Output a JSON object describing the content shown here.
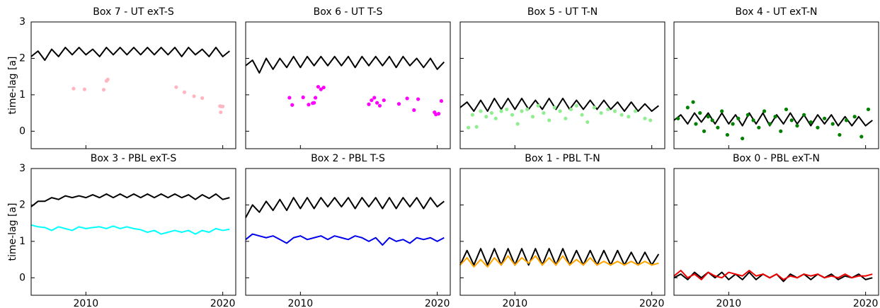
{
  "chart_data": [
    {
      "type": "line",
      "title": "Box 7 - UT exT-S",
      "ylabel": "time-lag [a]",
      "xlim": [
        2006.0,
        2020.95
      ],
      "xticks": [
        2010,
        2020
      ],
      "ylim": [
        -0.48,
        3
      ],
      "yticks": [
        0,
        1,
        2,
        3
      ],
      "x": [
        2006,
        2006.5,
        2007,
        2007.5,
        2008,
        2008.5,
        2009,
        2009.5,
        2010,
        2010.5,
        2011,
        2011.5,
        2012,
        2012.5,
        2013,
        2013.5,
        2014,
        2014.5,
        2015,
        2015.5,
        2016,
        2016.5,
        2017,
        2017.5,
        2018,
        2018.5,
        2019,
        2019.5,
        2020,
        2020.5
      ],
      "series": [
        {
          "kind": "line",
          "color": "#000000",
          "values": [
            2.05,
            2.2,
            1.95,
            2.25,
            2.05,
            2.3,
            2.1,
            2.3,
            2.1,
            2.25,
            2.05,
            2.3,
            2.1,
            2.3,
            2.1,
            2.3,
            2.1,
            2.3,
            2.1,
            2.3,
            2.1,
            2.3,
            2.05,
            2.3,
            2.1,
            2.25,
            2.05,
            2.3,
            2.05,
            2.2
          ]
        },
        {
          "kind": "scatter",
          "color": "#ffb6c1",
          "x": [
            2009.1,
            2009.9,
            2011.3,
            2011.5,
            2011.6,
            2016.6,
            2017.2,
            2017.9,
            2018.5,
            2019.8,
            2019.9,
            2020.0,
            2019.85
          ],
          "values": [
            1.17,
            1.15,
            1.14,
            1.38,
            1.42,
            1.21,
            1.07,
            0.96,
            0.91,
            0.69,
            0.68,
            0.68,
            0.52
          ]
        }
      ]
    },
    {
      "type": "line",
      "title": "Box 6 - UT T-S",
      "xlim": [
        2006.0,
        2020.95
      ],
      "xticks": [
        2010,
        2020
      ],
      "ylim": [
        -0.48,
        3
      ],
      "yticks": [
        0,
        1,
        2,
        3
      ],
      "x": [
        2006,
        2006.5,
        2007,
        2007.5,
        2008,
        2008.5,
        2009,
        2009.5,
        2010,
        2010.5,
        2011,
        2011.5,
        2012,
        2012.5,
        2013,
        2013.5,
        2014,
        2014.5,
        2015,
        2015.5,
        2016,
        2016.5,
        2017,
        2017.5,
        2018,
        2018.5,
        2019,
        2019.5,
        2020,
        2020.5
      ],
      "series": [
        {
          "kind": "line",
          "color": "#000000",
          "values": [
            1.8,
            1.95,
            1.6,
            2.0,
            1.7,
            2.0,
            1.75,
            2.05,
            1.75,
            2.05,
            1.8,
            2.05,
            1.8,
            2.05,
            1.8,
            2.05,
            1.75,
            2.05,
            1.8,
            2.05,
            1.8,
            2.05,
            1.75,
            2.05,
            1.8,
            2.0,
            1.75,
            2.0,
            1.7,
            1.9
          ]
        },
        {
          "kind": "scatter",
          "color": "#ff00ff",
          "x": [
            2009.2,
            2009.4,
            2010.2,
            2010.6,
            2010.9,
            2011.0,
            2011.1,
            2011.3,
            2011.5,
            2011.7,
            2015.0,
            2015.2,
            2015.4,
            2015.6,
            2015.8,
            2016.1,
            2017.2,
            2017.8,
            2018.3,
            2018.6,
            2019.8,
            2019.9,
            2020.1,
            2020.3
          ],
          "values": [
            0.92,
            0.72,
            0.93,
            0.73,
            0.77,
            0.78,
            0.92,
            1.22,
            1.15,
            1.2,
            0.74,
            0.85,
            0.92,
            0.78,
            0.7,
            0.85,
            0.75,
            0.9,
            0.58,
            0.88,
            0.52,
            0.46,
            0.48,
            0.83
          ]
        }
      ]
    },
    {
      "type": "line",
      "title": "Box 5 - UT T-N",
      "xlim": [
        2006.0,
        2020.95
      ],
      "xticks": [
        2010,
        2020
      ],
      "ylim": [
        -0.48,
        3
      ],
      "yticks": [
        0,
        1,
        2,
        3
      ],
      "x": [
        2006,
        2006.5,
        2007,
        2007.5,
        2008,
        2008.5,
        2009,
        2009.5,
        2010,
        2010.5,
        2011,
        2011.5,
        2012,
        2012.5,
        2013,
        2013.5,
        2014,
        2014.5,
        2015,
        2015.5,
        2016,
        2016.5,
        2017,
        2017.5,
        2018,
        2018.5,
        2019,
        2019.5,
        2020,
        2020.5
      ],
      "series": [
        {
          "kind": "line",
          "color": "#000000",
          "values": [
            0.65,
            0.8,
            0.55,
            0.85,
            0.55,
            0.9,
            0.6,
            0.9,
            0.6,
            0.9,
            0.6,
            0.85,
            0.6,
            0.9,
            0.6,
            0.9,
            0.6,
            0.85,
            0.6,
            0.85,
            0.6,
            0.85,
            0.6,
            0.8,
            0.55,
            0.8,
            0.55,
            0.75,
            0.55,
            0.7
          ]
        },
        {
          "kind": "scatter",
          "color": "#90ee90",
          "x": [
            2006.6,
            2006.9,
            2007.2,
            2007.5,
            2007.9,
            2008.3,
            2008.6,
            2009.0,
            2009.4,
            2009.8,
            2010.2,
            2010.5,
            2010.9,
            2011.3,
            2011.7,
            2012.1,
            2012.5,
            2012.9,
            2013.3,
            2013.7,
            2014.1,
            2014.5,
            2014.9,
            2015.3,
            2015.8,
            2016.3,
            2016.8,
            2017.3,
            2017.8,
            2018.3,
            2018.8,
            2019.5,
            2019.9
          ],
          "values": [
            0.1,
            0.45,
            0.12,
            0.55,
            0.4,
            0.5,
            0.35,
            0.55,
            0.6,
            0.45,
            0.2,
            0.55,
            0.6,
            0.4,
            0.7,
            0.5,
            0.3,
            0.65,
            0.55,
            0.35,
            0.6,
            0.7,
            0.45,
            0.25,
            0.65,
            0.5,
            0.6,
            0.55,
            0.45,
            0.4,
            0.55,
            0.35,
            0.3
          ]
        }
      ]
    },
    {
      "type": "line",
      "title": "Box 4 - UT exT-N",
      "xlim": [
        2006.0,
        2020.95
      ],
      "xticks": [
        2010,
        2020
      ],
      "ylim": [
        -0.48,
        3
      ],
      "yticks": [
        0,
        1,
        2,
        3
      ],
      "x": [
        2006,
        2006.5,
        2007,
        2007.5,
        2008,
        2008.5,
        2009,
        2009.5,
        2010,
        2010.5,
        2011,
        2011.5,
        2012,
        2012.5,
        2013,
        2013.5,
        2014,
        2014.5,
        2015,
        2015.5,
        2016,
        2016.5,
        2017,
        2017.5,
        2018,
        2018.5,
        2019,
        2019.5,
        2020,
        2020.5
      ],
      "series": [
        {
          "kind": "line",
          "color": "#000000",
          "values": [
            0.3,
            0.45,
            0.2,
            0.5,
            0.25,
            0.5,
            0.2,
            0.5,
            0.2,
            0.45,
            0.15,
            0.5,
            0.2,
            0.5,
            0.15,
            0.45,
            0.2,
            0.5,
            0.2,
            0.45,
            0.15,
            0.45,
            0.2,
            0.45,
            0.15,
            0.4,
            0.15,
            0.4,
            0.15,
            0.3
          ]
        },
        {
          "kind": "scatter",
          "color": "#008000",
          "x": [
            2006.3,
            2007.0,
            2007.4,
            2007.6,
            2007.9,
            2008.2,
            2008.5,
            2008.8,
            2009.2,
            2009.5,
            2009.9,
            2010.3,
            2010.7,
            2011.0,
            2011.4,
            2011.8,
            2012.2,
            2012.6,
            2013.0,
            2013.4,
            2013.8,
            2014.2,
            2014.6,
            2015.0,
            2015.5,
            2016.0,
            2016.5,
            2017.0,
            2017.6,
            2018.1,
            2018.6,
            2019.2,
            2019.7,
            2020.2
          ],
          "values": [
            0.35,
            0.65,
            0.8,
            0.2,
            0.5,
            0.0,
            0.4,
            0.3,
            0.1,
            0.55,
            -0.1,
            0.2,
            0.35,
            -0.2,
            0.45,
            0.3,
            0.1,
            0.55,
            0.2,
            0.4,
            0.0,
            0.6,
            0.3,
            0.15,
            0.45,
            0.25,
            0.1,
            0.35,
            0.2,
            -0.1,
            0.3,
            0.4,
            -0.15,
            0.6
          ]
        }
      ]
    },
    {
      "type": "line",
      "title": "Box 3 - PBL exT-S",
      "ylabel": "time-lag [a]",
      "xlim": [
        2006.0,
        2020.95
      ],
      "xticks": [
        2010,
        2020
      ],
      "ylim": [
        -0.48,
        3
      ],
      "yticks": [
        0,
        1,
        2,
        3
      ],
      "x": [
        2006,
        2006.5,
        2007,
        2007.5,
        2008,
        2008.5,
        2009,
        2009.5,
        2010,
        2010.5,
        2011,
        2011.5,
        2012,
        2012.5,
        2013,
        2013.5,
        2014,
        2014.5,
        2015,
        2015.5,
        2016,
        2016.5,
        2017,
        2017.5,
        2018,
        2018.5,
        2019,
        2019.5,
        2020,
        2020.5
      ],
      "series": [
        {
          "kind": "line",
          "color": "#000000",
          "values": [
            1.95,
            2.1,
            2.1,
            2.2,
            2.15,
            2.25,
            2.2,
            2.25,
            2.2,
            2.28,
            2.2,
            2.3,
            2.2,
            2.3,
            2.2,
            2.3,
            2.2,
            2.3,
            2.2,
            2.3,
            2.2,
            2.3,
            2.2,
            2.28,
            2.15,
            2.28,
            2.18,
            2.3,
            2.15,
            2.2
          ]
        },
        {
          "kind": "line",
          "color": "#00ffff",
          "values": [
            1.45,
            1.4,
            1.38,
            1.3,
            1.4,
            1.35,
            1.3,
            1.4,
            1.35,
            1.38,
            1.4,
            1.35,
            1.42,
            1.35,
            1.4,
            1.35,
            1.32,
            1.25,
            1.3,
            1.2,
            1.25,
            1.3,
            1.25,
            1.3,
            1.2,
            1.3,
            1.25,
            1.35,
            1.3,
            1.33
          ]
        }
      ]
    },
    {
      "type": "line",
      "title": "Box 2 - PBL T-S",
      "xlim": [
        2006.0,
        2020.95
      ],
      "xticks": [
        2010,
        2020
      ],
      "ylim": [
        -0.48,
        3
      ],
      "yticks": [
        0,
        1,
        2,
        3
      ],
      "x": [
        2006,
        2006.5,
        2007,
        2007.5,
        2008,
        2008.5,
        2009,
        2009.5,
        2010,
        2010.5,
        2011,
        2011.5,
        2012,
        2012.5,
        2013,
        2013.5,
        2014,
        2014.5,
        2015,
        2015.5,
        2016,
        2016.5,
        2017,
        2017.5,
        2018,
        2018.5,
        2019,
        2019.5,
        2020,
        2020.5
      ],
      "series": [
        {
          "kind": "line",
          "color": "#000000",
          "values": [
            1.65,
            2.0,
            1.8,
            2.1,
            1.85,
            2.15,
            1.85,
            2.2,
            1.9,
            2.2,
            1.9,
            2.2,
            1.95,
            2.2,
            1.95,
            2.2,
            1.9,
            2.2,
            1.95,
            2.2,
            1.9,
            2.2,
            1.9,
            2.2,
            1.95,
            2.2,
            1.9,
            2.2,
            1.95,
            2.1
          ]
        },
        {
          "kind": "line",
          "color": "#0000ee",
          "values": [
            1.05,
            1.2,
            1.15,
            1.1,
            1.15,
            1.05,
            0.95,
            1.1,
            1.15,
            1.05,
            1.1,
            1.15,
            1.05,
            1.15,
            1.1,
            1.05,
            1.15,
            1.1,
            1.0,
            1.1,
            0.9,
            1.1,
            1.0,
            1.05,
            0.95,
            1.1,
            1.05,
            1.1,
            1.0,
            1.1
          ]
        }
      ]
    },
    {
      "type": "line",
      "title": "Box 1 - PBL T-N",
      "xlim": [
        2006.0,
        2020.95
      ],
      "xticks": [
        2010,
        2020
      ],
      "ylim": [
        -0.48,
        3
      ],
      "yticks": [
        0,
        1,
        2,
        3
      ],
      "x": [
        2006,
        2006.5,
        2007,
        2007.5,
        2008,
        2008.5,
        2009,
        2009.5,
        2010,
        2010.5,
        2011,
        2011.5,
        2012,
        2012.5,
        2013,
        2013.5,
        2014,
        2014.5,
        2015,
        2015.5,
        2016,
        2016.5,
        2017,
        2017.5,
        2018,
        2018.5,
        2019,
        2019.5,
        2020,
        2020.5
      ],
      "series": [
        {
          "kind": "line",
          "color": "#000000",
          "values": [
            0.35,
            0.75,
            0.35,
            0.8,
            0.35,
            0.8,
            0.35,
            0.8,
            0.35,
            0.8,
            0.35,
            0.8,
            0.35,
            0.8,
            0.35,
            0.8,
            0.35,
            0.75,
            0.35,
            0.75,
            0.35,
            0.75,
            0.35,
            0.75,
            0.35,
            0.7,
            0.35,
            0.7,
            0.35,
            0.65
          ]
        },
        {
          "kind": "line",
          "color": "#ffa500",
          "values": [
            0.35,
            0.55,
            0.3,
            0.5,
            0.3,
            0.55,
            0.35,
            0.6,
            0.35,
            0.55,
            0.4,
            0.6,
            0.35,
            0.55,
            0.35,
            0.6,
            0.35,
            0.5,
            0.35,
            0.55,
            0.35,
            0.45,
            0.35,
            0.45,
            0.35,
            0.45,
            0.35,
            0.45,
            0.35,
            0.4
          ]
        }
      ]
    },
    {
      "type": "line",
      "title": "Box 0 - PBL exT-N",
      "xlim": [
        2006.0,
        2020.95
      ],
      "xticks": [
        2010,
        2020
      ],
      "ylim": [
        -0.48,
        3
      ],
      "yticks": [
        0,
        1,
        2,
        3
      ],
      "x": [
        2006,
        2006.5,
        2007,
        2007.5,
        2008,
        2008.5,
        2009,
        2009.5,
        2010,
        2010.5,
        2011,
        2011.5,
        2012,
        2012.5,
        2013,
        2013.5,
        2014,
        2014.5,
        2015,
        2015.5,
        2016,
        2016.5,
        2017,
        2017.5,
        2018,
        2018.5,
        2019,
        2019.5,
        2020,
        2020.5
      ],
      "series": [
        {
          "kind": "line",
          "color": "#000000",
          "values": [
            0.0,
            0.1,
            -0.05,
            0.15,
            0.0,
            0.15,
            0.0,
            0.15,
            -0.05,
            0.1,
            -0.05,
            0.15,
            -0.05,
            0.1,
            0.0,
            0.1,
            -0.1,
            0.1,
            0.0,
            0.1,
            -0.05,
            0.1,
            0.0,
            0.1,
            -0.05,
            0.05,
            0.0,
            0.1,
            -0.05,
            0.0
          ]
        },
        {
          "kind": "line",
          "color": "#ee0000",
          "values": [
            0.05,
            0.2,
            0.0,
            0.1,
            -0.05,
            0.15,
            0.05,
            0.0,
            0.15,
            0.1,
            0.05,
            0.2,
            0.05,
            0.1,
            0.0,
            0.1,
            -0.05,
            0.05,
            0.0,
            0.1,
            0.05,
            0.1,
            0.0,
            0.05,
            0.0,
            0.1,
            0.0,
            0.05,
            0.05,
            0.1
          ]
        }
      ]
    }
  ]
}
